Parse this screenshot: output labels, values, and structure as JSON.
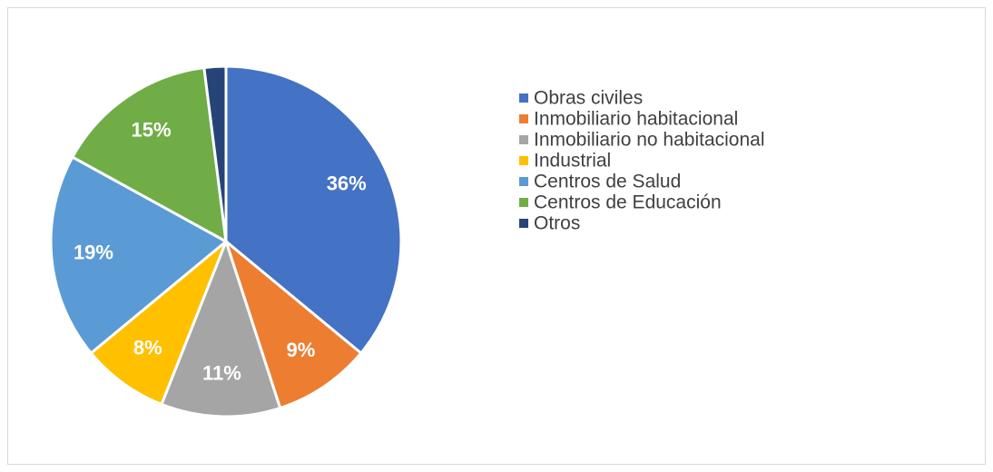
{
  "chart_data": {
    "type": "pie",
    "categories": [
      "Obras civiles",
      "Inmobiliario habitacional",
      "Inmobiliario no habitacional",
      "Industrial",
      "Centros de Salud",
      "Centros de Educación",
      "Otros"
    ],
    "values": [
      36,
      9,
      11,
      8,
      19,
      15,
      2
    ],
    "value_labels": [
      "36%",
      "9%",
      "11%",
      "8%",
      "19%",
      "15%",
      null
    ],
    "colors": [
      "#4472c4",
      "#ed7d31",
      "#a5a5a5",
      "#ffc000",
      "#5b9bd5",
      "#70ad47",
      "#264478"
    ],
    "legend": "right"
  }
}
